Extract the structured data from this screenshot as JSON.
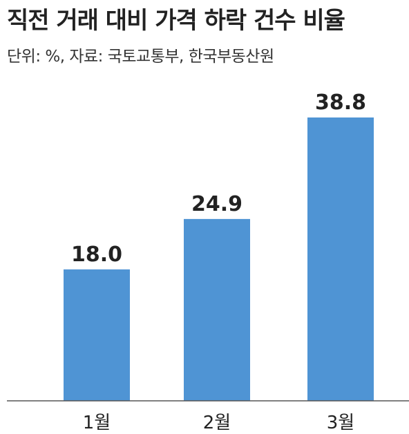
{
  "title": "직전 거래 대비 가격 하락 건수 비율",
  "subtitle": "단위: %, 자료: 국토교통부, 한국부동산원",
  "colors": {
    "bar": "#4f94d4",
    "axis": "#555555",
    "text": "#222222"
  },
  "chart_data": {
    "type": "bar",
    "categories": [
      "1월",
      "2월",
      "3월"
    ],
    "values": [
      18.0,
      24.9,
      38.8
    ],
    "value_labels": [
      "18.0",
      "24.9",
      "38.8"
    ],
    "ylim": [
      0,
      38.8
    ],
    "grid": false,
    "legend": "none"
  }
}
